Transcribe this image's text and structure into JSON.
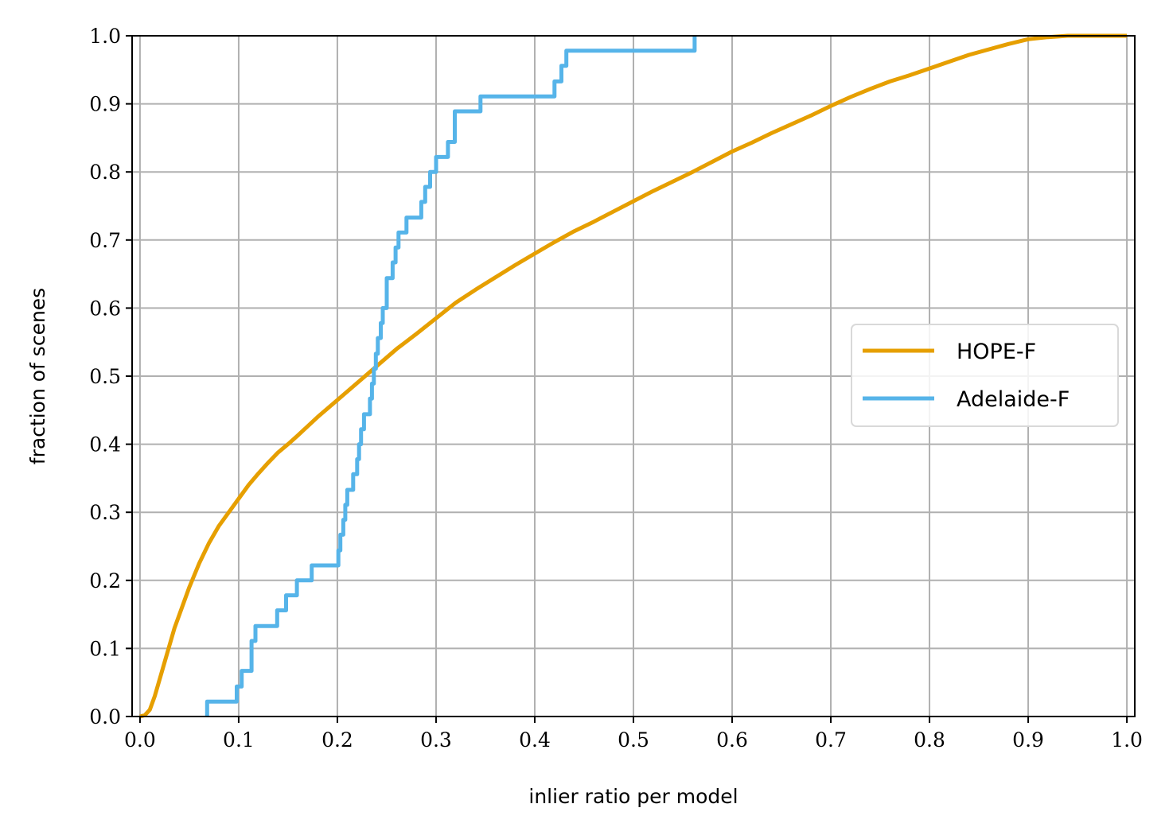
{
  "chart_data": {
    "type": "line",
    "xlabel": "inlier ratio per model",
    "ylabel": "fraction of scenes",
    "xlim": [
      -0.008,
      1.008
    ],
    "ylim": [
      0.0,
      1.0
    ],
    "xticks": [
      "0.0",
      "0.1",
      "0.2",
      "0.3",
      "0.4",
      "0.5",
      "0.6",
      "0.7",
      "0.8",
      "0.9",
      "1.0"
    ],
    "yticks": [
      "0.0",
      "0.1",
      "0.2",
      "0.3",
      "0.4",
      "0.5",
      "0.6",
      "0.7",
      "0.8",
      "0.9",
      "1.0"
    ],
    "grid": true,
    "legend_position": "center-right",
    "series": [
      {
        "name": "HOPE-F",
        "color": "#E69F00",
        "step": false,
        "x": [
          0.0,
          0.005,
          0.01,
          0.015,
          0.02,
          0.025,
          0.03,
          0.035,
          0.04,
          0.05,
          0.06,
          0.07,
          0.08,
          0.09,
          0.1,
          0.11,
          0.12,
          0.13,
          0.14,
          0.15,
          0.16,
          0.18,
          0.2,
          0.22,
          0.24,
          0.26,
          0.28,
          0.3,
          0.32,
          0.34,
          0.36,
          0.38,
          0.4,
          0.42,
          0.44,
          0.46,
          0.48,
          0.5,
          0.52,
          0.54,
          0.56,
          0.58,
          0.6,
          0.62,
          0.64,
          0.66,
          0.68,
          0.7,
          0.72,
          0.74,
          0.76,
          0.78,
          0.8,
          0.82,
          0.84,
          0.86,
          0.88,
          0.9,
          0.92,
          0.94,
          0.96,
          1.0
        ],
        "y": [
          0.0,
          0.002,
          0.01,
          0.03,
          0.055,
          0.08,
          0.105,
          0.13,
          0.15,
          0.19,
          0.225,
          0.255,
          0.28,
          0.3,
          0.32,
          0.34,
          0.357,
          0.373,
          0.388,
          0.4,
          0.413,
          0.44,
          0.465,
          0.49,
          0.515,
          0.54,
          0.562,
          0.585,
          0.608,
          0.627,
          0.645,
          0.663,
          0.68,
          0.697,
          0.713,
          0.727,
          0.742,
          0.757,
          0.772,
          0.786,
          0.8,
          0.815,
          0.83,
          0.843,
          0.857,
          0.87,
          0.883,
          0.897,
          0.91,
          0.922,
          0.933,
          0.942,
          0.952,
          0.962,
          0.972,
          0.98,
          0.988,
          0.995,
          0.998,
          1.0,
          1.0,
          1.0
        ]
      },
      {
        "name": "Adelaide-F",
        "color": "#56B4E9",
        "step": true,
        "x": [
          0.068,
          0.068,
          0.098,
          0.103,
          0.113,
          0.117,
          0.139,
          0.148,
          0.159,
          0.174,
          0.201,
          0.203,
          0.206,
          0.208,
          0.21,
          0.216,
          0.22,
          0.222,
          0.224,
          0.227,
          0.233,
          0.235,
          0.237,
          0.239,
          0.241,
          0.244,
          0.246,
          0.25,
          0.256,
          0.259,
          0.262,
          0.27,
          0.285,
          0.289,
          0.294,
          0.3,
          0.312,
          0.319,
          0.345,
          0.42,
          0.427,
          0.432,
          0.44,
          0.562
        ],
        "y": [
          0.0,
          0.022,
          0.044,
          0.067,
          0.111,
          0.133,
          0.156,
          0.178,
          0.2,
          0.222,
          0.244,
          0.267,
          0.289,
          0.311,
          0.333,
          0.356,
          0.378,
          0.4,
          0.422,
          0.444,
          0.467,
          0.489,
          0.511,
          0.533,
          0.556,
          0.578,
          0.6,
          0.644,
          0.667,
          0.689,
          0.711,
          0.733,
          0.756,
          0.778,
          0.8,
          0.822,
          0.844,
          0.889,
          0.911,
          0.933,
          0.956,
          0.978,
          0.978,
          1.0
        ]
      }
    ]
  }
}
